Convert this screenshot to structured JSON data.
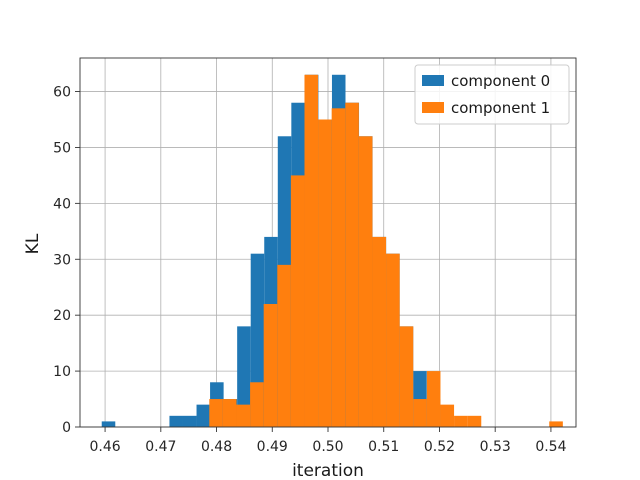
{
  "chart_data": {
    "type": "bar",
    "xlabel": "iteration",
    "ylabel": "KL",
    "xlim": [
      0.4555,
      0.5445
    ],
    "ylim": [
      0,
      66
    ],
    "xticks": [
      0.46,
      0.47,
      0.48,
      0.49,
      0.5,
      0.51,
      0.52,
      0.53,
      0.54
    ],
    "xtick_labels": [
      "0.46",
      "0.47",
      "0.48",
      "0.49",
      "0.50",
      "0.51",
      "0.52",
      "0.53",
      "0.54"
    ],
    "yticks": [
      0,
      10,
      20,
      30,
      40,
      50,
      60
    ],
    "ytick_labels": [
      "0",
      "10",
      "20",
      "30",
      "40",
      "50",
      "60"
    ],
    "grid": true,
    "legend_position": "top-right",
    "series": [
      {
        "name": "component 0",
        "color": "#1f77b4",
        "bin_edges": [
          0.4594,
          0.46183,
          0.46426,
          0.46669,
          0.46912,
          0.47155,
          0.47398,
          0.47641,
          0.47884,
          0.48127,
          0.4837,
          0.48613,
          0.48856,
          0.49099,
          0.49342,
          0.49585,
          0.49828,
          0.50071,
          0.50314,
          0.50557,
          0.508,
          0.51043,
          0.51286,
          0.51529,
          0.51772,
          0.52015
        ],
        "counts": [
          1,
          0,
          0,
          0,
          0,
          2,
          2,
          4,
          8,
          5,
          18,
          31,
          34,
          52,
          58,
          63,
          55,
          63,
          58,
          52,
          34,
          31,
          18,
          10,
          5
        ]
      },
      {
        "name": "component 1",
        "color": "#ff7f0e",
        "bin_edges": [
          0.4787,
          0.48114,
          0.48358,
          0.48602,
          0.48846,
          0.4909,
          0.49334,
          0.49578,
          0.49822,
          0.50066,
          0.5031,
          0.50554,
          0.50798,
          0.51042,
          0.51286,
          0.5153,
          0.51774,
          0.52018,
          0.52262,
          0.52506,
          0.5275,
          0.52994,
          0.53238,
          0.53482,
          0.53726,
          0.5397,
          0.54214
        ],
        "counts": [
          5,
          5,
          4,
          8,
          22,
          29,
          45,
          63,
          55,
          57,
          58,
          52,
          34,
          31,
          18,
          5,
          10,
          4,
          2,
          2,
          0,
          0,
          0,
          0,
          0,
          1
        ]
      }
    ]
  }
}
